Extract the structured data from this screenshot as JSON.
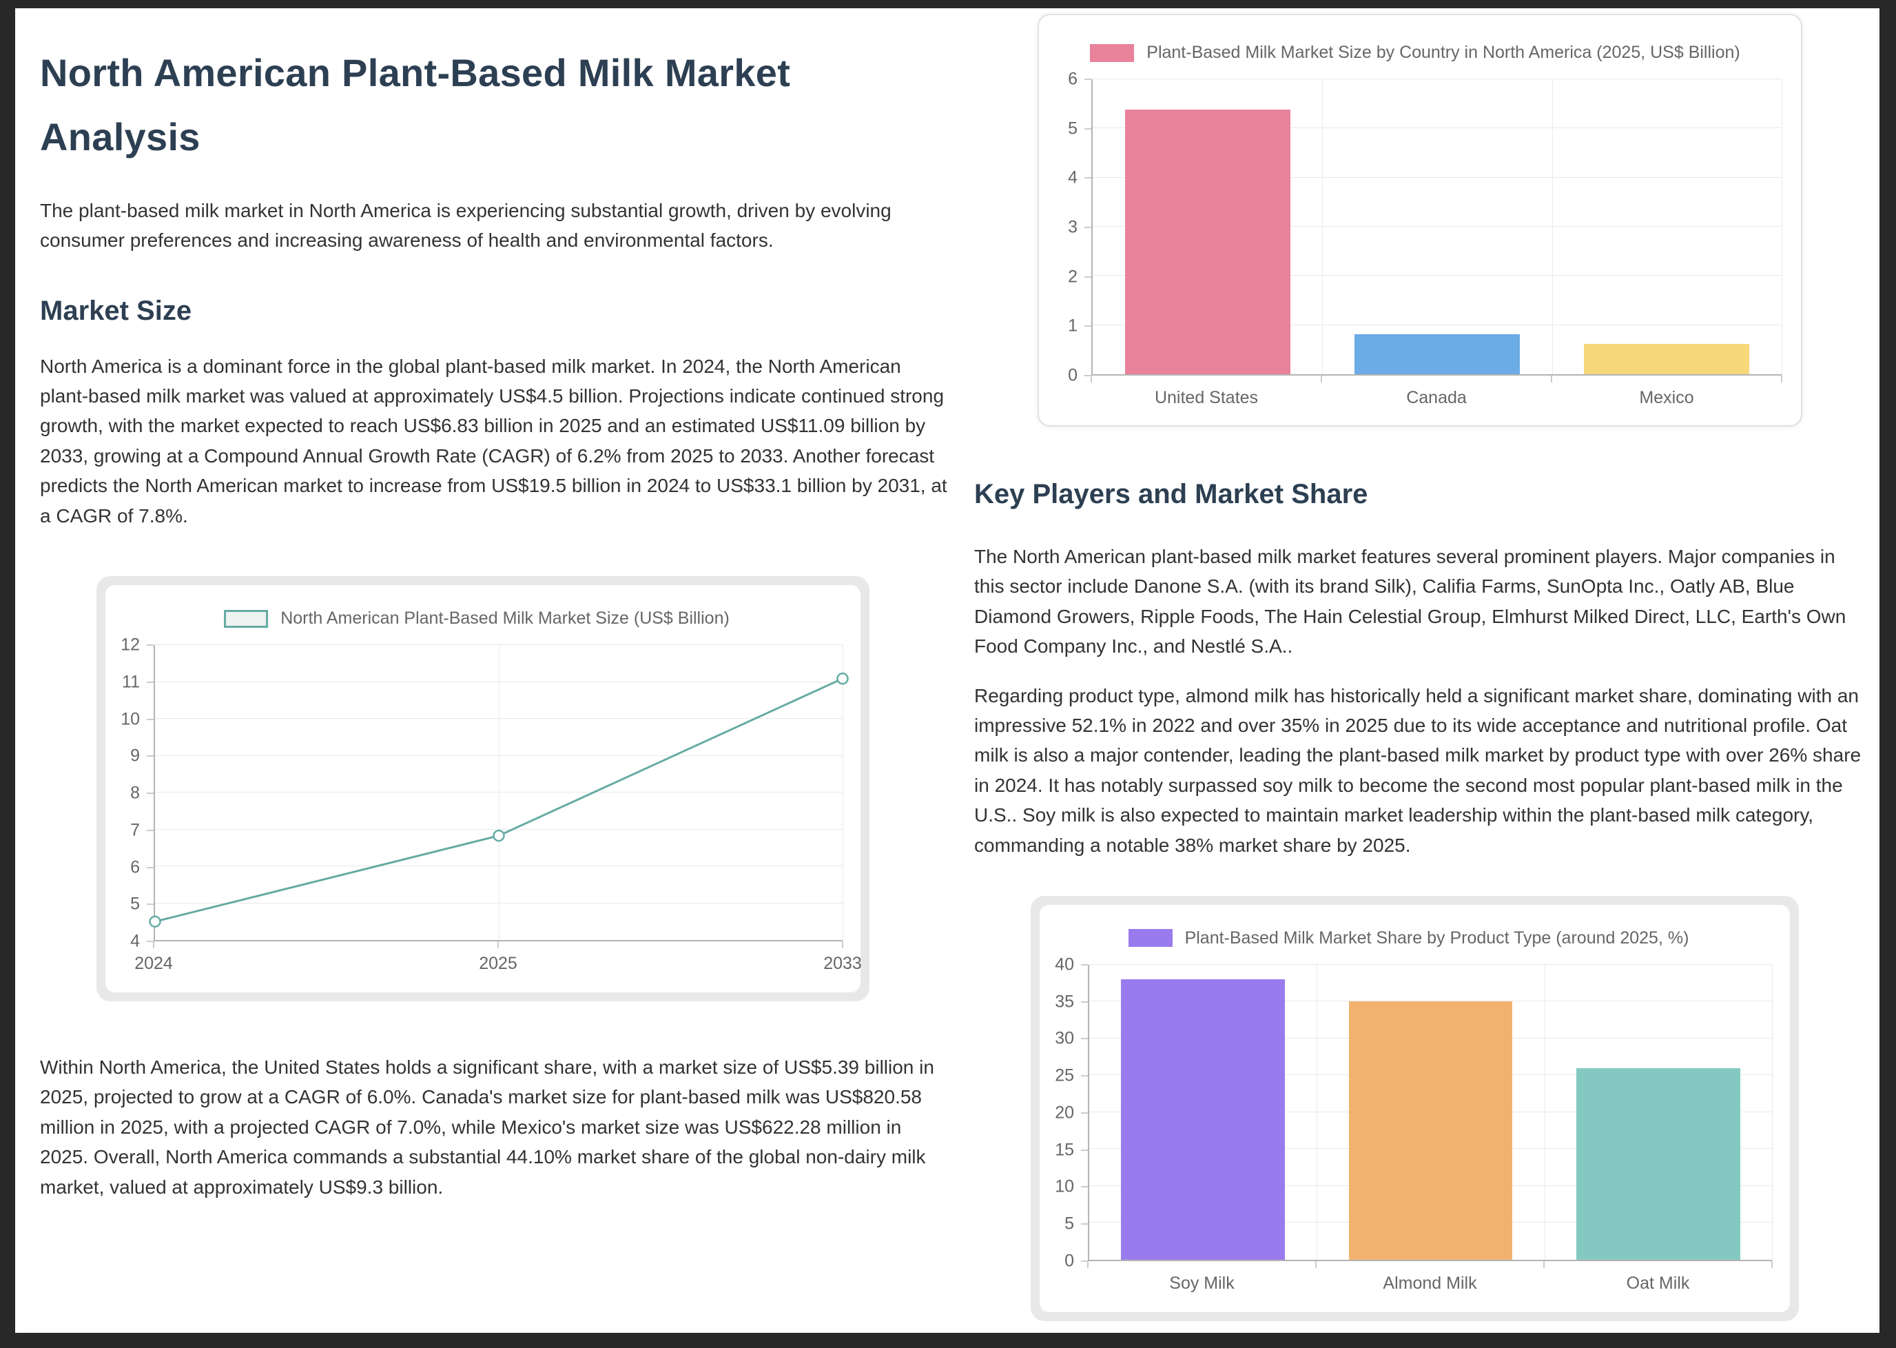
{
  "document": {
    "title": "North American Plant-Based Milk Market Analysis",
    "intro": "The plant-based milk market in North America is experiencing substantial growth, driven by evolving consumer preferences and increasing awareness of health and environmental factors.",
    "sections": [
      {
        "heading": "Market Size",
        "para1": "North America is a dominant force in the global plant-based milk market. In 2024, the North American plant-based milk market was valued at approximately US$4.5 billion. Projections indicate continued strong growth, with the market expected to reach US$6.83 billion in 2025 and an estimated US$11.09 billion by 2033, growing at a Compound Annual Growth Rate (CAGR) of 6.2% from 2025 to 2033. Another forecast predicts the North American market to increase from US$19.5 billion in 2024 to US$33.1 billion by 2031, at a CAGR of 7.8%.",
        "para2": "Within North America, the United States holds a significant share, with a market size of US$5.39 billion in 2025, projected to grow at a CAGR of 6.0%. Canada's market size for plant-based milk was US$820.58 million in 2025, with a projected CAGR of 7.0%, while Mexico's market size was US$622.28 million in 2025. Overall, North America commands a substantial 44.10% market share of the global non-dairy milk market, valued at approximately US$9.3 billion."
      },
      {
        "heading": "Key Players and Market Share",
        "para1": "The North American plant-based milk market features several prominent players. Major companies in this sector include Danone S.A. (with its brand Silk), Califia Farms, SunOpta Inc., Oatly AB, Blue Diamond Growers, Ripple Foods, The Hain Celestial Group, Elmhurst Milked Direct, LLC, Earth's Own Food Company Inc., and Nestlé S.A..",
        "para2": "Regarding product type, almond milk has historically held a significant market share, dominating with an impressive 52.1% in 2022 and over 35% in 2025 due to its wide acceptance and nutritional profile. Oat milk is also a major contender, leading the plant-based milk market by product type with over 26% share in 2024. It has notably surpassed soy milk to become the second most popular plant-based milk in the U.S.. Soy milk is also expected to maintain market leadership within the plant-based milk category, commanding a notable 38% market share by 2025."
      }
    ]
  },
  "chart_data": [
    {
      "type": "bar",
      "title": "Plant-Based Milk Market Size by Country in North America (2025, US$ Billion)",
      "categories": [
        "United States",
        "Canada",
        "Mexico"
      ],
      "values": [
        5.39,
        0.82,
        0.62
      ],
      "bar_colors": [
        "#e8829a",
        "#6babe6",
        "#f6d87a"
      ],
      "xlabel": "",
      "ylabel": "",
      "ylim": [
        0,
        6
      ],
      "ystep": 1,
      "grid": true,
      "legend_position": "top"
    },
    {
      "type": "line",
      "title": "North American Plant-Based Milk Market Size (US$ Billion)",
      "categories": [
        "2024",
        "2025",
        "2033"
      ],
      "values": [
        4.5,
        6.83,
        11.09
      ],
      "line_color": "#66aba4",
      "legend_fill": "#eef2f1",
      "xlabel": "",
      "ylabel": "",
      "ylim": [
        4,
        12
      ],
      "ystep": 1,
      "grid": true,
      "legend_position": "top"
    },
    {
      "type": "bar",
      "title": "Plant-Based Milk Market Share by Product Type (around 2025, %)",
      "categories": [
        "Soy Milk",
        "Almond Milk",
        "Oat Milk"
      ],
      "values": [
        38,
        35,
        26
      ],
      "bar_colors": [
        "#9a7bee",
        "#f1b26f",
        "#83c9c2"
      ],
      "xlabel": "",
      "ylabel": "",
      "ylim": [
        0,
        40
      ],
      "ystep": 5,
      "grid": true,
      "legend_position": "top"
    }
  ]
}
